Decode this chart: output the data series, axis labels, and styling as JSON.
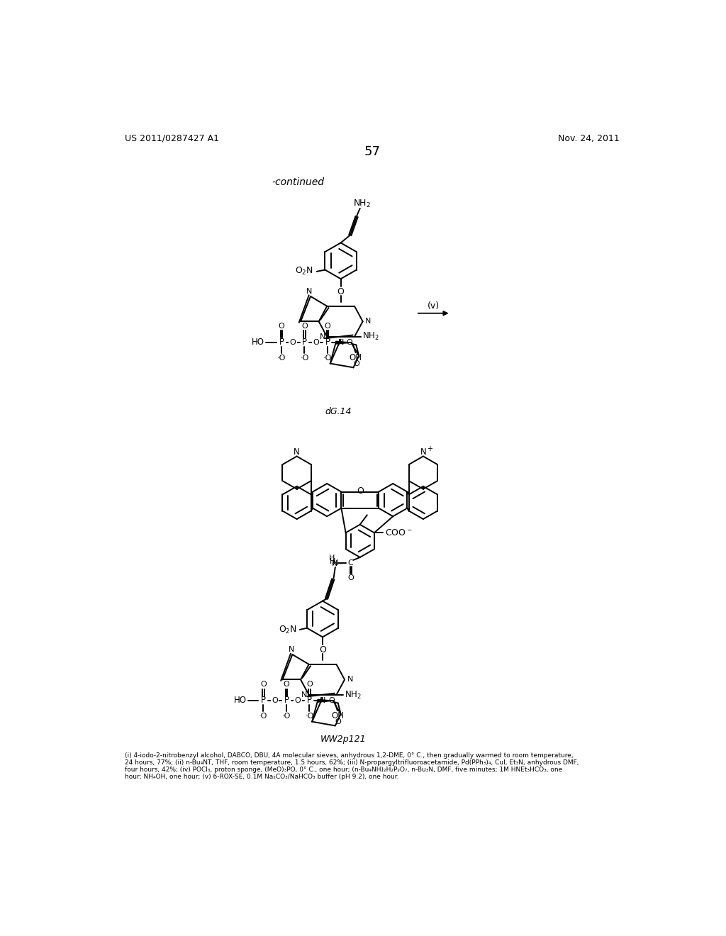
{
  "page_number": "57",
  "patent_number": "US 2011/0287427 A1",
  "date": "Nov. 24, 2011",
  "continued_label": "-continued",
  "reaction_label": "(v)",
  "compound_label_1": "dG.14",
  "compound_label_2": "WW2p121",
  "fn1": "(i) 4-iodo-2-nitrobenzyl alcohol, DABCO, DBU, 4A molecular sieves, anhydrous 1,2-DME, 0° C., then gradually warmed to room temperature,",
  "fn2": "24 hours, 77%; (ii) n-Bu₄NT, THF, room temperature, 1.5 hours, 62%; (iii) N-propargyltrifluoroacetamide, Pd(PPh₃)₄, CuI, Et₃N, anhydrous DMF,",
  "fn3": "four hours, 42%; (iv) POCl₃, proton sponge, (MeO)₃PO, 0° C., one hour; (n-Bu₄NH)₂H₂P₂O₇, n-Bu₃N, DMF, five minutes; 1M HNEt₃HCO₃, one",
  "fn4": "hour; NH₄OH, one hour; (v) 6-ROX-SE, 0.1M Na₂CO₃/NaHCO₃ buffer (pH 9.2), one hour.",
  "bg_color": "#ffffff"
}
